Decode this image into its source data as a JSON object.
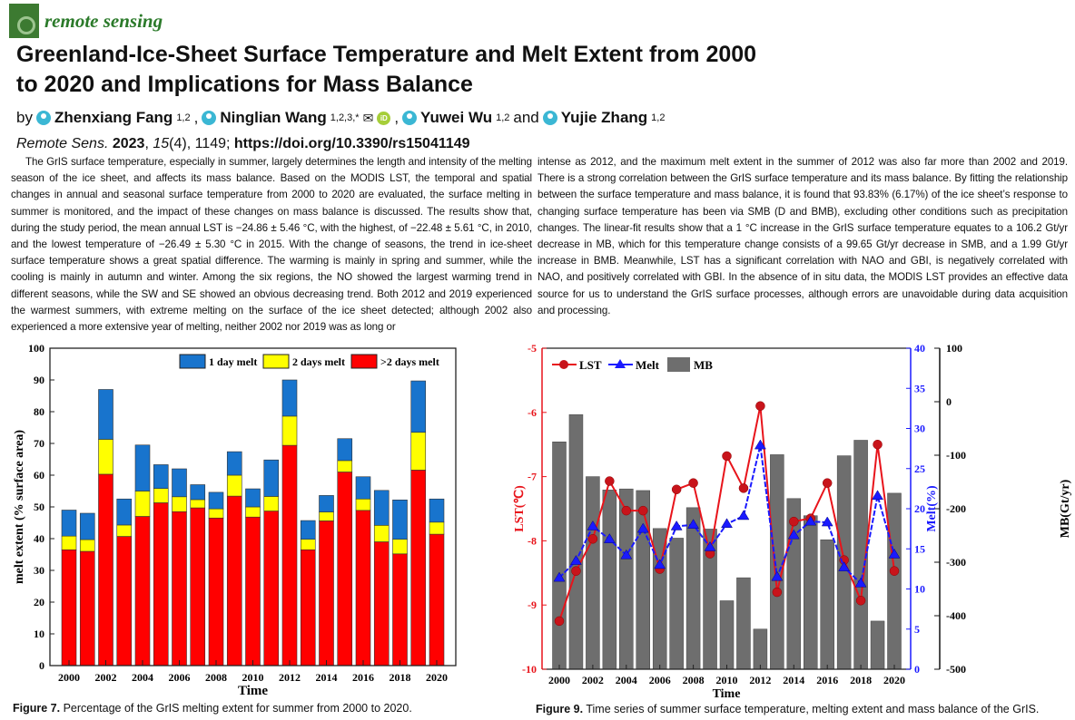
{
  "journal": {
    "name": "remote sensing"
  },
  "article": {
    "title": "Greenland-Ice-Sheet Surface Temperature and Melt Extent from 2000 to 2020 and Implications for Mass Balance",
    "by": "by",
    "authors": [
      {
        "name": "Zhenxiang Fang",
        "aff": "1,2"
      },
      {
        "name": "Ninglian Wang",
        "aff": "1,2,3,*"
      },
      {
        "name": "Yuwei Wu",
        "aff": "1,2"
      },
      {
        "name": "Yujie Zhang",
        "aff": "1,2"
      }
    ],
    "and": "and",
    "orcid": "iD",
    "citation": {
      "journal": "Remote Sens.",
      "year": "2023",
      "volume": "15",
      "issue": "(4)",
      "page": ", 1149; ",
      "doi": "https://doi.org/10.3390/rs15041149"
    },
    "abstract_left": "The GrIS surface temperature, especially in summer, largely determines the length and intensity of the melting season of the ice sheet, and affects its mass balance. Based on the MODIS LST, the temporal and spatial changes in annual and seasonal surface temperature from 2000 to 2020 are evaluated, the surface melting in summer is monitored, and the impact of these changes on mass balance is discussed. The results show that, during the study period, the mean annual LST is −24.86 ± 5.46 °C, with the highest, of −22.48 ± 5.61 °C, in 2010, and the lowest temperature of −26.49 ± 5.30 °C in 2015. With the change of seasons, the trend in ice-sheet surface temperature shows a great spatial difference. The warming is mainly in spring and summer, while the cooling is mainly in autumn and winter. Among the six regions, the NO showed the largest warming trend in different seasons, while the SW and SE showed an obvious decreasing trend. Both 2012 and 2019 experienced the warmest summers, with extreme melting on the surface of the ice sheet detected; although 2002 also experienced a more extensive year of melting, neither 2002 nor 2019 was as long or",
    "abstract_right": "intense as 2012, and the maximum melt extent in the summer of 2012 was also far more than 2002 and 2019. There is a strong correlation between the GrIS surface temperature and its mass balance. By fitting the relationship between the surface temperature and mass balance, it is found that 93.83% (6.17%) of the ice sheet’s response to changing surface temperature has been via SMB (D and BMB), excluding other conditions such as precipitation changes. The linear-fit results show that a 1 °C increase in the GrIS surface temperature equates to a 106.2 Gt/yr decrease in MB, which for this temperature change consists of a 99.65 Gt/yr decrease in SMB, and a 1.99 Gt/yr increase in BMB. Meanwhile, LST has a significant correlation with NAO and GBI, is negatively correlated with NAO, and positively correlated with GBI. In the absence of in situ data, the MODIS LST provides an effective data source for us to understand the GrIS surface processes, although errors are unavoidable during data acquisition and processing."
  },
  "figures": [
    {
      "label": "Figure 7.",
      "caption": " Percentage of the GrIS melting extent for summer from 2000 to 2020."
    },
    {
      "label": "Figure 9.",
      "caption": " Time series of summer surface temperature, melting extent and mass balance of the GrIS."
    }
  ],
  "chart_data": [
    {
      "type": "bar",
      "stacked": true,
      "xlabel": "Time",
      "ylabel": "melt extent (% surface area)",
      "ylim": [
        0,
        100
      ],
      "yticks": [
        0,
        10,
        20,
        30,
        40,
        50,
        60,
        70,
        80,
        90,
        100
      ],
      "xticks": [
        "2000",
        "2002",
        "2004",
        "2006",
        "2008",
        "2010",
        "2012",
        "2014",
        "2016",
        "2018",
        "2020"
      ],
      "legend": "top-right",
      "categories": [
        2000,
        2001,
        2002,
        2003,
        2004,
        2005,
        2006,
        2007,
        2008,
        2009,
        2010,
        2011,
        2012,
        2013,
        2014,
        2015,
        2016,
        2017,
        2018,
        2019,
        2020
      ],
      "series": [
        {
          "name": ">2 days melt",
          "color": "#ff0000",
          "values": [
            36.5,
            36,
            60.3,
            40.7,
            47,
            51.3,
            48.5,
            49.7,
            46.5,
            53.4,
            46.8,
            48.7,
            69.4,
            36.5,
            45.6,
            61,
            48.9,
            39,
            35.2,
            61.6,
            41.4
          ]
        },
        {
          "name": "2 days melt",
          "color": "#ffff00",
          "values": [
            4.3,
            3.7,
            11,
            3.6,
            8,
            4.5,
            4.7,
            2.6,
            2.9,
            6.6,
            3.2,
            4.6,
            9.2,
            3.3,
            2.8,
            3.6,
            3.6,
            5.2,
            4.6,
            11.9,
            3.8
          ]
        },
        {
          "name": "1 day melt",
          "color": "#1874cd",
          "values": [
            8.2,
            8.3,
            15.7,
            8.2,
            14.5,
            7.5,
            8.8,
            4.7,
            5.2,
            7.4,
            5.7,
            11.5,
            11.4,
            5.9,
            5.2,
            6.9,
            7,
            11,
            12.4,
            16.2,
            7.3
          ]
        }
      ]
    },
    {
      "type": "line",
      "xlabel": "Time",
      "xticks": [
        "2000",
        "2002",
        "2004",
        "2006",
        "2008",
        "2010",
        "2012",
        "2014",
        "2016",
        "2018",
        "2020"
      ],
      "legend": "top-left",
      "categories": [
        2000,
        2001,
        2002,
        2003,
        2004,
        2005,
        2006,
        2007,
        2008,
        2009,
        2010,
        2011,
        2012,
        2013,
        2014,
        2015,
        2016,
        2017,
        2018,
        2019,
        2020
      ],
      "axes": [
        {
          "label": "LST(℃)",
          "side": "left",
          "color": "#e8141b",
          "ylim": [
            -10,
            -5
          ],
          "ticks": [
            -10,
            -9,
            -8,
            -7,
            -6,
            -5
          ]
        },
        {
          "label": "Melt(%)",
          "side": "right",
          "color": "#1a1aff",
          "ylim": [
            0,
            40
          ],
          "ticks": [
            0,
            5,
            10,
            15,
            20,
            25,
            30,
            35,
            40
          ]
        },
        {
          "label": "MB(Gt/yr)",
          "side": "right-outer",
          "color": "#111111",
          "ylim": [
            -500,
            100
          ],
          "ticks": [
            -500,
            -400,
            -300,
            -200,
            -100,
            0,
            100
          ]
        }
      ],
      "series": [
        {
          "name": "LST",
          "type": "line",
          "marker": "circle",
          "color": "#e8141b",
          "axis": 0,
          "values": [
            -9.25,
            -8.47,
            -7.97,
            -7.07,
            -7.53,
            -7.53,
            -8.44,
            -7.2,
            -7.1,
            -8.2,
            -6.68,
            -7.18,
            -5.9,
            -8.8,
            -7.7,
            -7.65,
            -7.1,
            -8.3,
            -8.93,
            -6.5,
            -8.47
          ]
        },
        {
          "name": "Melt",
          "type": "line",
          "marker": "triangle",
          "color": "#1a1aff",
          "axis": 1,
          "values": [
            11.4,
            13.5,
            17.8,
            16.2,
            14.2,
            17.5,
            13,
            17.8,
            18,
            15.2,
            18.1,
            19.1,
            27.9,
            11.5,
            16.7,
            18.4,
            18.3,
            12.7,
            10.7,
            21.6,
            14.3
          ]
        },
        {
          "name": "MB",
          "type": "bar",
          "color": "#6e6e6e",
          "axis": 2,
          "values": [
            -75,
            -24,
            -140,
            -165,
            -163,
            -166,
            -237,
            -255,
            -198,
            -238,
            -372,
            -329,
            -425,
            -99,
            -181,
            -213,
            -258,
            -101,
            -72,
            -410,
            -171
          ]
        }
      ]
    }
  ]
}
